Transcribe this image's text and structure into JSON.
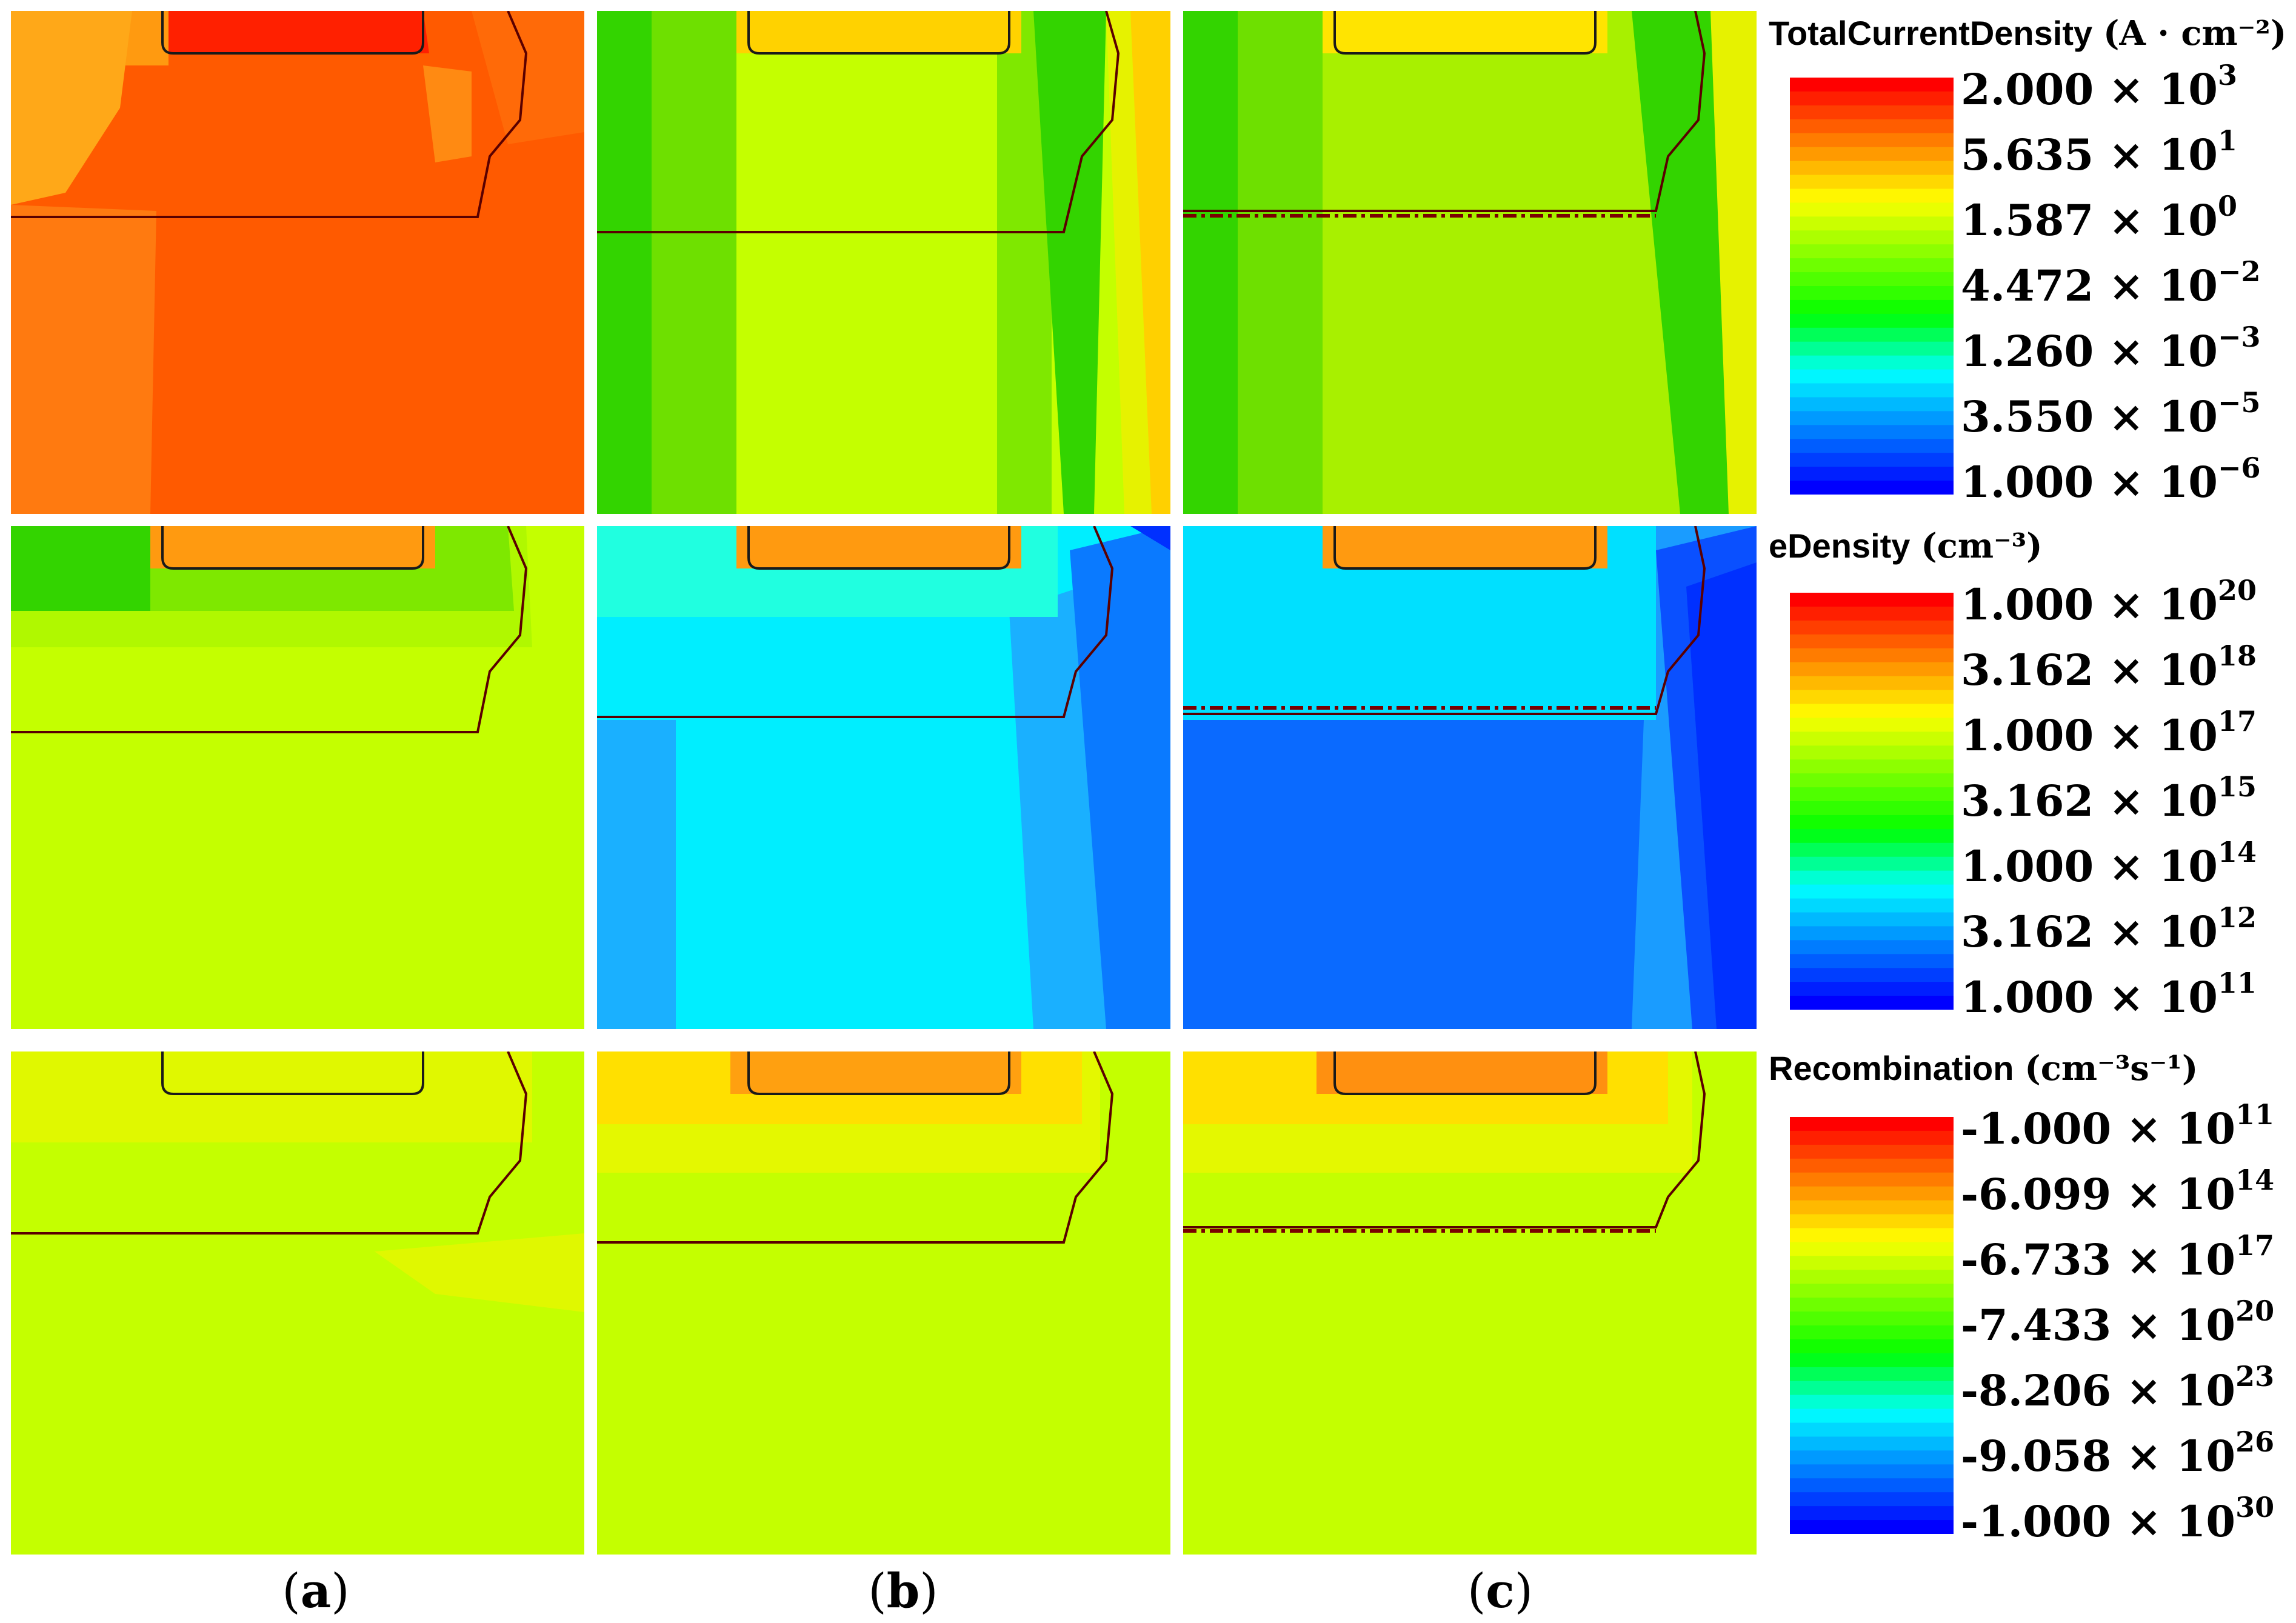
{
  "panel_labels": [
    "a",
    "b",
    "c"
  ],
  "chart_data": {
    "type": "heatmap",
    "rows": [
      {
        "quantity": "TotalCurrentDensity",
        "unit": "(A · cm⁻²)",
        "colorbar_ticks": [
          {
            "mantissa": "2.000",
            "exponent": "3"
          },
          {
            "mantissa": "5.635",
            "exponent": "1"
          },
          {
            "mantissa": "1.587",
            "exponent": "0"
          },
          {
            "mantissa": "4.472",
            "exponent": "−2"
          },
          {
            "mantissa": "1.260",
            "exponent": "−3"
          },
          {
            "mantissa": "3.550",
            "exponent": "−5"
          },
          {
            "mantissa": "1.000",
            "exponent": "−6"
          }
        ],
        "scale": "log",
        "range": [
          1e-06,
          2000
        ],
        "panels": [
          "a",
          "b",
          "c"
        ]
      },
      {
        "quantity": "eDensity",
        "unit": "(cm⁻³)",
        "colorbar_ticks": [
          {
            "mantissa": "1.000",
            "exponent": "20"
          },
          {
            "mantissa": "3.162",
            "exponent": "18"
          },
          {
            "mantissa": "1.000",
            "exponent": "17"
          },
          {
            "mantissa": "3.162",
            "exponent": "15"
          },
          {
            "mantissa": "1.000",
            "exponent": "14"
          },
          {
            "mantissa": "3.162",
            "exponent": "12"
          },
          {
            "mantissa": "1.000",
            "exponent": "11"
          }
        ],
        "scale": "log",
        "range": [
          100000000000.0,
          1e+20
        ],
        "panels": [
          "a",
          "b",
          "c"
        ]
      },
      {
        "quantity": "Recombination",
        "unit": "(cm⁻³s⁻¹)",
        "colorbar_ticks": [
          {
            "mantissa": "-1.000",
            "exponent": "11"
          },
          {
            "mantissa": "-6.099",
            "exponent": "14"
          },
          {
            "mantissa": "-6.733",
            "exponent": "17"
          },
          {
            "mantissa": "-7.433",
            "exponent": "20"
          },
          {
            "mantissa": "-8.206",
            "exponent": "23"
          },
          {
            "mantissa": "-9.058",
            "exponent": "26"
          },
          {
            "mantissa": "-1.000",
            "exponent": "30"
          }
        ],
        "scale": "log",
        "range": [
          -1e+30,
          -100000000000.0
        ],
        "panels": [
          "a",
          "b",
          "c"
        ]
      }
    ],
    "colormap": [
      "#ff0000",
      "#ff8000",
      "#ffff00",
      "#80ff00",
      "#00ff00",
      "#00ffff",
      "#0080ff",
      "#0000ff"
    ]
  }
}
